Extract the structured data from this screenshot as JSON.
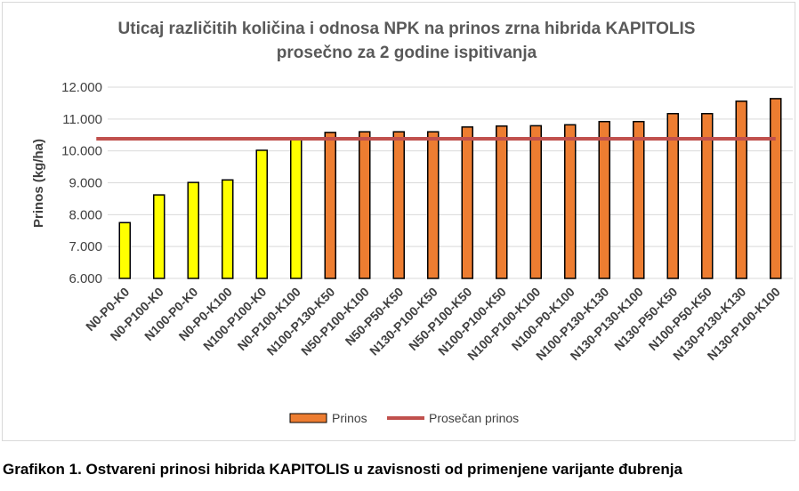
{
  "caption": "Grafikon 1. Ostvareni prinosi hibrida KAPITOLIS u zavisnosti od primenjene varijante đubrenja",
  "colors": {
    "highlight": "#ffff00",
    "bar": "#ed7d31",
    "barStroke": "#000000",
    "avgLine": "#c0504d",
    "grid": "#d9d9d9"
  },
  "chart_data": {
    "type": "bar",
    "title": [
      "Uticaj različitih količina i odnosa NPK na prinos zrna hibrida KAPITOLIS",
      "prosečno za 2 godine ispitivanja"
    ],
    "ylabel": "Prinos (kg/ha)",
    "xlabel": "",
    "ylim": [
      6000,
      12000
    ],
    "yticks": [
      6000,
      7000,
      8000,
      9000,
      10000,
      11000,
      12000
    ],
    "ytick_labels": [
      "6.000",
      "7.000",
      "8.000",
      "9.000",
      "10.000",
      "11.000",
      "12.000"
    ],
    "grid": true,
    "legend_position": "bottom",
    "categories": [
      "N0-P0-K0",
      "N0-P100-K0",
      "N100-P0-K0",
      "N0-P0-K100",
      "N100-P100-K0",
      "N0-P100-K100",
      "N100-P130-K50",
      "N50-P100-K100",
      "N50-P50-K50",
      "N130-P100-K50",
      "N50-P100-K50",
      "N100-P100-K50",
      "N100-P100-K100",
      "N100-P0-K100",
      "N100-P130-K130",
      "N130-P130-K100",
      "N130-P50-K50",
      "N100-P50-K50",
      "N130-P130-K130",
      "N130-P100-K100"
    ],
    "series": [
      {
        "name": "Prinos",
        "values": [
          7750,
          8620,
          9010,
          9090,
          10020,
          10400,
          10580,
          10600,
          10600,
          10600,
          10750,
          10780,
          10790,
          10820,
          10920,
          10920,
          11170,
          11170,
          11560,
          11640
        ],
        "highlighted_count": 6
      },
      {
        "name": "Prosečan prinos",
        "type": "line",
        "value": 10380
      }
    ]
  }
}
